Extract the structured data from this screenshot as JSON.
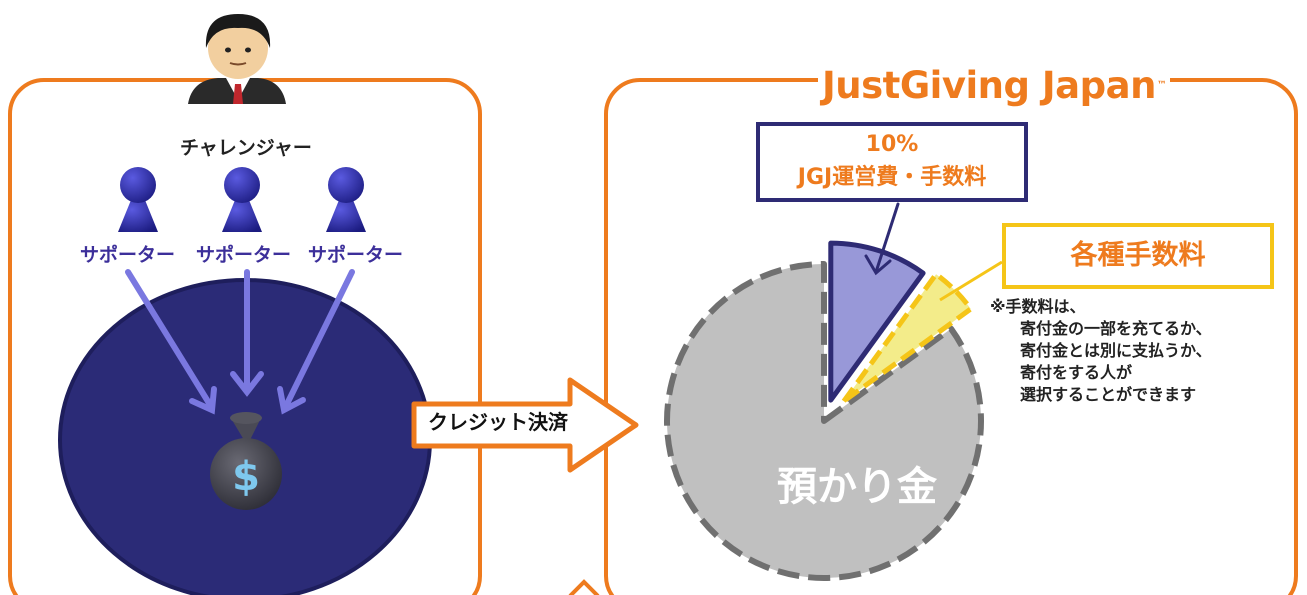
{
  "challenger": {
    "label": "チャレンジャー"
  },
  "supporters": [
    {
      "label": "サポーター"
    },
    {
      "label": "サポーター"
    },
    {
      "label": "サポーター"
    }
  ],
  "money_bag": {
    "symbol": "$"
  },
  "payment": {
    "label": "クレジット決済"
  },
  "logo": {
    "text": "JustGiving Japan",
    "tm": "™"
  },
  "pie": {
    "slices": [
      {
        "label": "10%\nJGJ運営費・手数料",
        "fraction": 0.1
      },
      {
        "label": "各種手数料",
        "fraction": 0.05
      },
      {
        "label": "預かり金",
        "fraction": 0.85
      }
    ]
  },
  "jgj_fee": {
    "percent": "10%",
    "label": "JGJ運営費・手数料"
  },
  "various_fee": {
    "label": "各種手数料"
  },
  "note": {
    "lines": [
      "※手数料は、",
      "寄付金の一部を充てるか、",
      "寄付金とは別に支払うか、",
      "寄付をする人が",
      "選択することができます"
    ]
  },
  "deposit": {
    "label": "預かり金"
  },
  "colors": {
    "orange": "#ee7b1e",
    "navy": "#2e2b74",
    "yellow": "#f5c518",
    "gray": "#c0c0c0",
    "blue": "#2a2a9a"
  }
}
